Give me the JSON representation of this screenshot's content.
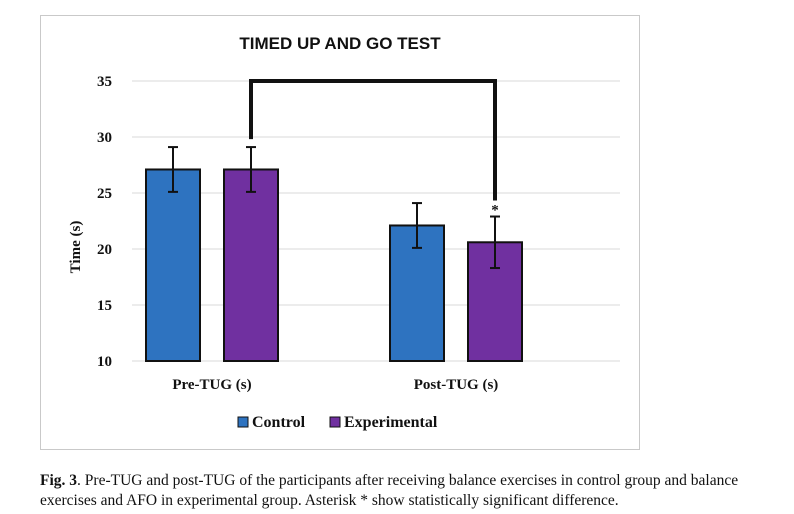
{
  "chart_data": {
    "type": "bar",
    "title": "TIMED UP AND GO TEST",
    "xlabel": "",
    "ylabel": "Time (s)",
    "ylim": [
      10,
      35
    ],
    "yticks": [
      10,
      15,
      20,
      25,
      30,
      35
    ],
    "grid": true,
    "legend_position": "bottom",
    "categories": [
      "Pre-TUG (s)",
      "Post-TUG (s)"
    ],
    "series": [
      {
        "name": "Control",
        "color": "#2e73c0",
        "values": [
          27.1,
          22.1
        ],
        "errors": [
          2.0,
          2.0
        ]
      },
      {
        "name": "Experimental",
        "color": "#7030a0",
        "values": [
          27.1,
          20.6
        ],
        "errors": [
          2.0,
          2.3
        ]
      }
    ],
    "significance": {
      "from": "Pre-TUG (s)",
      "to": "Post-TUG (s)",
      "series": "Experimental",
      "marker": "*"
    }
  },
  "caption": {
    "label": "Fig. 3",
    "text": ". Pre-TUG and post-TUG of the participants after receiving balance exercises in control group and balance exercises and AFO in experimental group. Asterisk * show statistically significant difference."
  }
}
